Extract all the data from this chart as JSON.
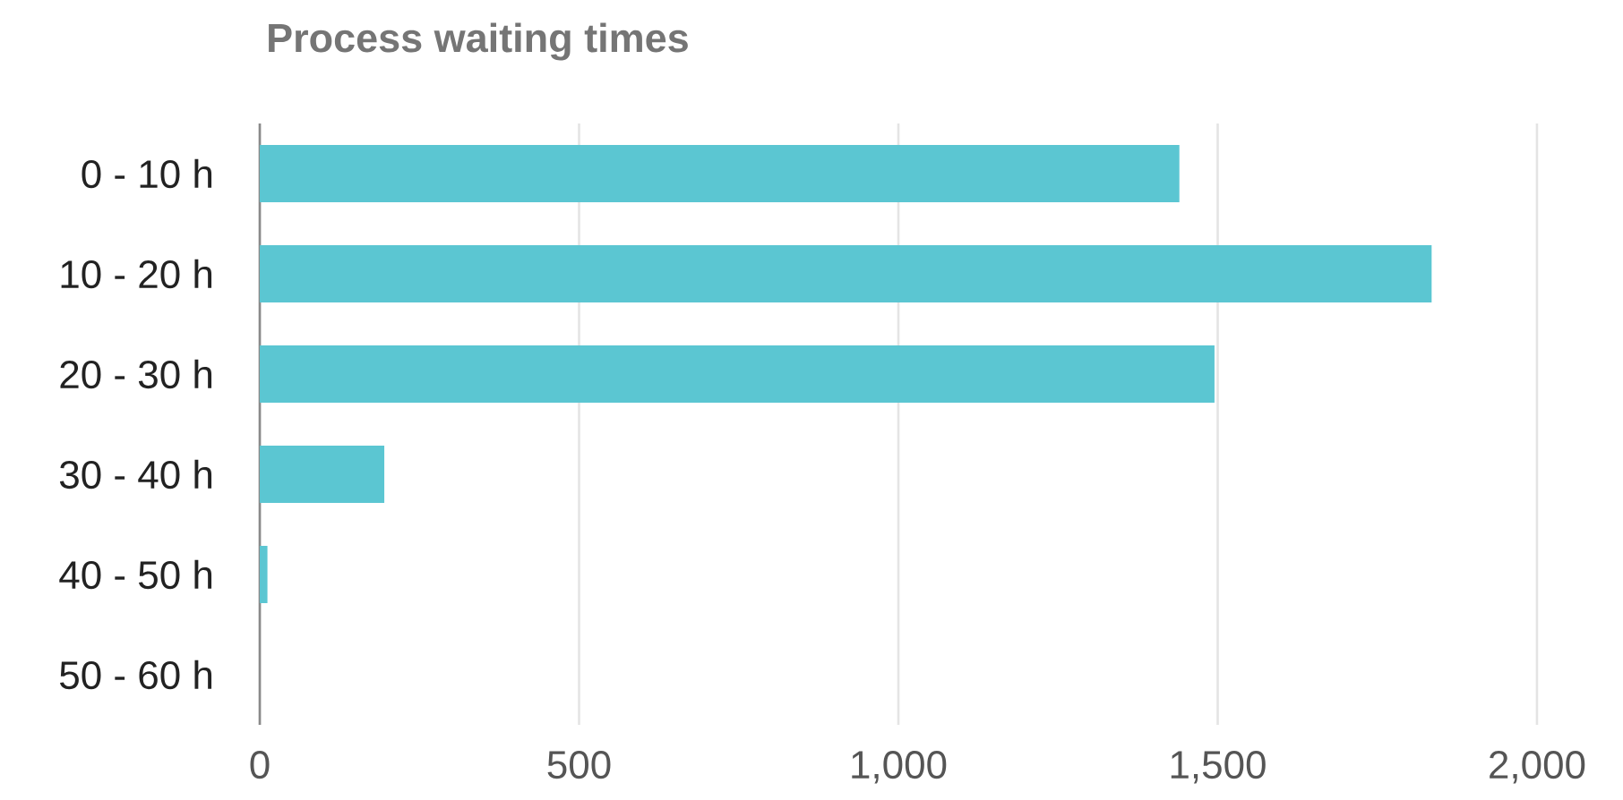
{
  "chart_data": {
    "type": "bar",
    "orientation": "horizontal",
    "title": "Process waiting times",
    "categories": [
      "0 - 10 h",
      "10 - 20 h",
      "20 - 30 h",
      "30 - 40 h",
      "40 - 50 h",
      "50 - 60 h"
    ],
    "values": [
      1440,
      1835,
      1495,
      195,
      12,
      0
    ],
    "color": "#5bc6d2",
    "xlim": [
      0,
      2000
    ],
    "xticks": [
      0,
      500,
      {
        "value": 1000,
        "label": "1,000"
      },
      {
        "value": 1500,
        "label": "1,500"
      },
      {
        "value": 2000,
        "label": "2,000"
      }
    ],
    "grid": "x"
  }
}
